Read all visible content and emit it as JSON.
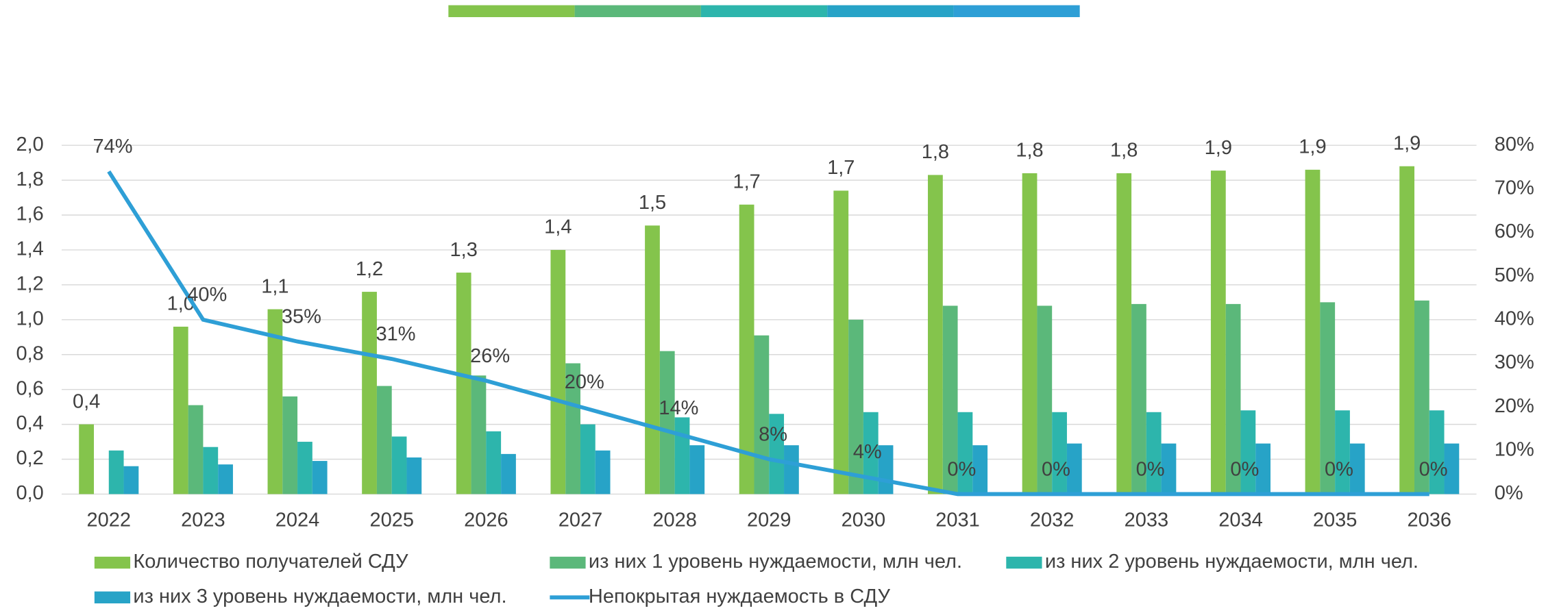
{
  "chart_data": {
    "type": "bar",
    "categories": [
      "2022",
      "2023",
      "2024",
      "2025",
      "2026",
      "2027",
      "2028",
      "2029",
      "2030",
      "2031",
      "2032",
      "2033",
      "2034",
      "2035",
      "2036"
    ],
    "series": [
      {
        "name": "Количество получателей СДУ",
        "color": "#84c44c",
        "values": [
          0.4,
          0.96,
          1.06,
          1.16,
          1.27,
          1.4,
          1.54,
          1.66,
          1.74,
          1.83,
          1.84,
          1.84,
          1.855,
          1.86,
          1.88
        ],
        "value_labels": [
          "0,4",
          "1,0",
          "1,1",
          "1,2",
          "1,3",
          "1,4",
          "1,5",
          "1,7",
          "1,7",
          "1,8",
          "1,8",
          "1,8",
          "1,9",
          "1,9",
          "1,9"
        ]
      },
      {
        "name": "из них 1 уровень нуждаемости, млн чел.",
        "color": "#5bb87a",
        "values": [
          null,
          0.51,
          0.56,
          0.62,
          0.68,
          0.75,
          0.82,
          0.91,
          1.0,
          1.08,
          1.08,
          1.09,
          1.09,
          1.1,
          1.11
        ]
      },
      {
        "name": "из них 2 уровень нуждаемости, млн чел.",
        "color": "#2db5ac",
        "values": [
          0.25,
          0.27,
          0.3,
          0.33,
          0.36,
          0.4,
          0.44,
          0.46,
          0.47,
          0.47,
          0.47,
          0.47,
          0.48,
          0.48,
          0.48
        ]
      },
      {
        "name": "из них 3 уровень нуждаемости, млн чел.",
        "color": "#27a3c7",
        "values": [
          0.16,
          0.17,
          0.19,
          0.21,
          0.23,
          0.25,
          0.28,
          0.28,
          0.28,
          0.28,
          0.29,
          0.29,
          0.29,
          0.29,
          0.29
        ]
      },
      {
        "name": "Непокрытая нуждаемость в СДУ",
        "type": "line",
        "axis": "y2",
        "color": "#2e9fd6",
        "values": [
          74,
          40,
          35,
          31,
          26,
          20,
          14,
          8,
          4,
          0,
          0,
          0,
          0,
          0,
          0
        ],
        "value_labels": [
          "74%",
          "40%",
          "35%",
          "31%",
          "26%",
          "20%",
          "14%",
          "8%",
          "4%",
          "0%",
          "0%",
          "0%",
          "0%",
          "0%",
          "0%"
        ]
      }
    ],
    "ylim": [
      0,
      2
    ],
    "yticks": [
      {
        "value": 0,
        "label": "0,0"
      },
      {
        "value": 0.2,
        "label": "0,2"
      },
      {
        "value": 0.4,
        "label": "0,4"
      },
      {
        "value": 0.6,
        "label": "0,6"
      },
      {
        "value": 0.8,
        "label": "0,8"
      },
      {
        "value": 1,
        "label": "1,0"
      },
      {
        "value": 1.2,
        "label": "1,2"
      },
      {
        "value": 1.4,
        "label": "1,4"
      },
      {
        "value": 1.6,
        "label": "1,6"
      },
      {
        "value": 1.8,
        "label": "1,8"
      },
      {
        "value": 2,
        "label": "2,0"
      }
    ],
    "y2lim": [
      0,
      80
    ],
    "y2ticks": [
      {
        "value": 0,
        "label": "0%"
      },
      {
        "value": 10,
        "label": "10%"
      },
      {
        "value": 20,
        "label": "20%"
      },
      {
        "value": 30,
        "label": "30%"
      },
      {
        "value": 40,
        "label": "40%"
      },
      {
        "value": 50,
        "label": "50%"
      },
      {
        "value": 60,
        "label": "60%"
      },
      {
        "value": 70,
        "label": "70%"
      },
      {
        "value": 80,
        "label": "80%"
      }
    ],
    "grid": true,
    "legend": "bottom"
  }
}
